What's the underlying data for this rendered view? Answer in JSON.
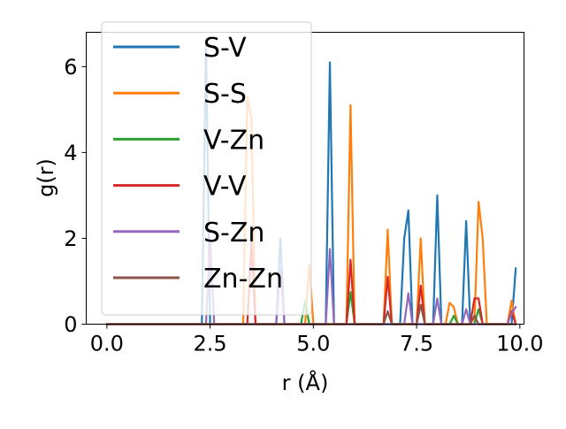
{
  "chart_data": {
    "type": "line",
    "xlabel": "r (Å)",
    "ylabel": "g(r)",
    "xlim": [
      -0.5,
      10.1
    ],
    "ylim": [
      0,
      6.8
    ],
    "x_ticks": [
      "0.0",
      "2.5",
      "5.0",
      "7.5",
      "10.0"
    ],
    "y_ticks": [
      "0",
      "2",
      "4",
      "6"
    ],
    "grid": false,
    "legend_position": "upper-left",
    "x": [
      0.0,
      0.1,
      0.2,
      0.3,
      0.4,
      0.5,
      0.6,
      0.7,
      0.8,
      0.9,
      1.0,
      1.1,
      1.2,
      1.3,
      1.4,
      1.5,
      1.6,
      1.7,
      1.8,
      1.9,
      2.0,
      2.1,
      2.2,
      2.3,
      2.4,
      2.5,
      2.6,
      2.7,
      2.8,
      2.9,
      3.0,
      3.1,
      3.2,
      3.3,
      3.4,
      3.5,
      3.6,
      3.7,
      3.8,
      3.9,
      4.0,
      4.1,
      4.2,
      4.3,
      4.4,
      4.5,
      4.6,
      4.7,
      4.8,
      4.9,
      5.0,
      5.1,
      5.2,
      5.3,
      5.4,
      5.5,
      5.6,
      5.7,
      5.8,
      5.9,
      6.0,
      6.1,
      6.2,
      6.3,
      6.4,
      6.5,
      6.6,
      6.7,
      6.8,
      6.9,
      7.0,
      7.1,
      7.2,
      7.3,
      7.4,
      7.5,
      7.6,
      7.7,
      7.8,
      7.9,
      8.0,
      8.1,
      8.2,
      8.3,
      8.4,
      8.5,
      8.6,
      8.7,
      8.8,
      8.9,
      9.0,
      9.1,
      9.2,
      9.3,
      9.4,
      9.5,
      9.6,
      9.7,
      9.8,
      9.9
    ],
    "series": [
      {
        "name": "S-V",
        "color": "#1f77b4",
        "peaks": [
          [
            2.4,
            6.5
          ],
          [
            4.2,
            2.0
          ],
          [
            5.4,
            6.1
          ],
          [
            7.2,
            2.0
          ],
          [
            7.3,
            2.65
          ],
          [
            8.0,
            3.0
          ],
          [
            8.7,
            2.4
          ],
          [
            9.9,
            1.3
          ]
        ]
      },
      {
        "name": "S-S",
        "color": "#ff7f0e",
        "peaks": [
          [
            3.4,
            5.3
          ],
          [
            3.5,
            4.8
          ],
          [
            4.9,
            1.4
          ],
          [
            5.9,
            5.1
          ],
          [
            6.8,
            2.2
          ],
          [
            7.6,
            2.0
          ],
          [
            8.3,
            0.5
          ],
          [
            8.4,
            0.4
          ],
          [
            9.0,
            2.85
          ],
          [
            9.1,
            2.0
          ],
          [
            9.8,
            0.55
          ]
        ]
      },
      {
        "name": "V-Zn",
        "color": "#2ca02c",
        "peaks": [
          [
            4.8,
            0.55
          ],
          [
            5.9,
            0.75
          ],
          [
            8.4,
            0.2
          ],
          [
            9.0,
            0.35
          ]
        ]
      },
      {
        "name": "V-V",
        "color": "#d62728",
        "peaks": [
          [
            3.5,
            1.9
          ],
          [
            5.9,
            1.5
          ],
          [
            6.8,
            1.1
          ],
          [
            7.6,
            0.9
          ],
          [
            8.9,
            0.6
          ],
          [
            9.0,
            0.6
          ],
          [
            9.8,
            0.3
          ]
        ]
      },
      {
        "name": "S-Zn",
        "color": "#9467bd",
        "peaks": [
          [
            2.5,
            2.0
          ],
          [
            4.2,
            1.3
          ],
          [
            5.4,
            1.75
          ],
          [
            7.3,
            0.72
          ],
          [
            8.0,
            0.6
          ],
          [
            8.7,
            0.35
          ],
          [
            9.8,
            0.25
          ],
          [
            9.9,
            0.4
          ]
        ]
      },
      {
        "name": "Zn-Zn",
        "color": "#8c564b",
        "peaks": [
          [
            6.8,
            0.3
          ],
          [
            7.6,
            0.45
          ],
          [
            8.9,
            0.2
          ]
        ]
      }
    ]
  }
}
